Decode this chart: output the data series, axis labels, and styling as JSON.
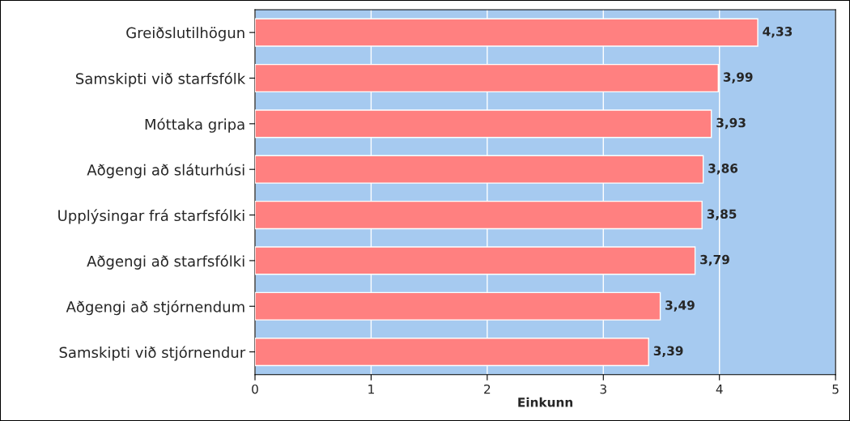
{
  "chart_data": {
    "type": "bar",
    "orientation": "horizontal",
    "xlabel": "Einkunn",
    "categories": [
      "Greiðslutilhögun",
      "Samskipti við starfsfólk",
      "Móttaka gripa",
      "Aðgengi að sláturhúsi",
      "Upplýsingar frá starfsfólki",
      "Aðgengi að starfsfólki",
      "Aðgengi að stjórnendum",
      "Samskipti við stjórnendur"
    ],
    "values": [
      4.33,
      3.99,
      3.93,
      3.86,
      3.85,
      3.79,
      3.49,
      3.39
    ],
    "value_labels": [
      "4,33",
      "3,99",
      "3,93",
      "3,86",
      "3,85",
      "3,79",
      "3,49",
      "3,39"
    ],
    "color": "#ff8080",
    "xlim": [
      0,
      5
    ],
    "xticks": [
      0,
      1,
      2,
      3,
      4,
      5
    ],
    "grid": "x"
  }
}
